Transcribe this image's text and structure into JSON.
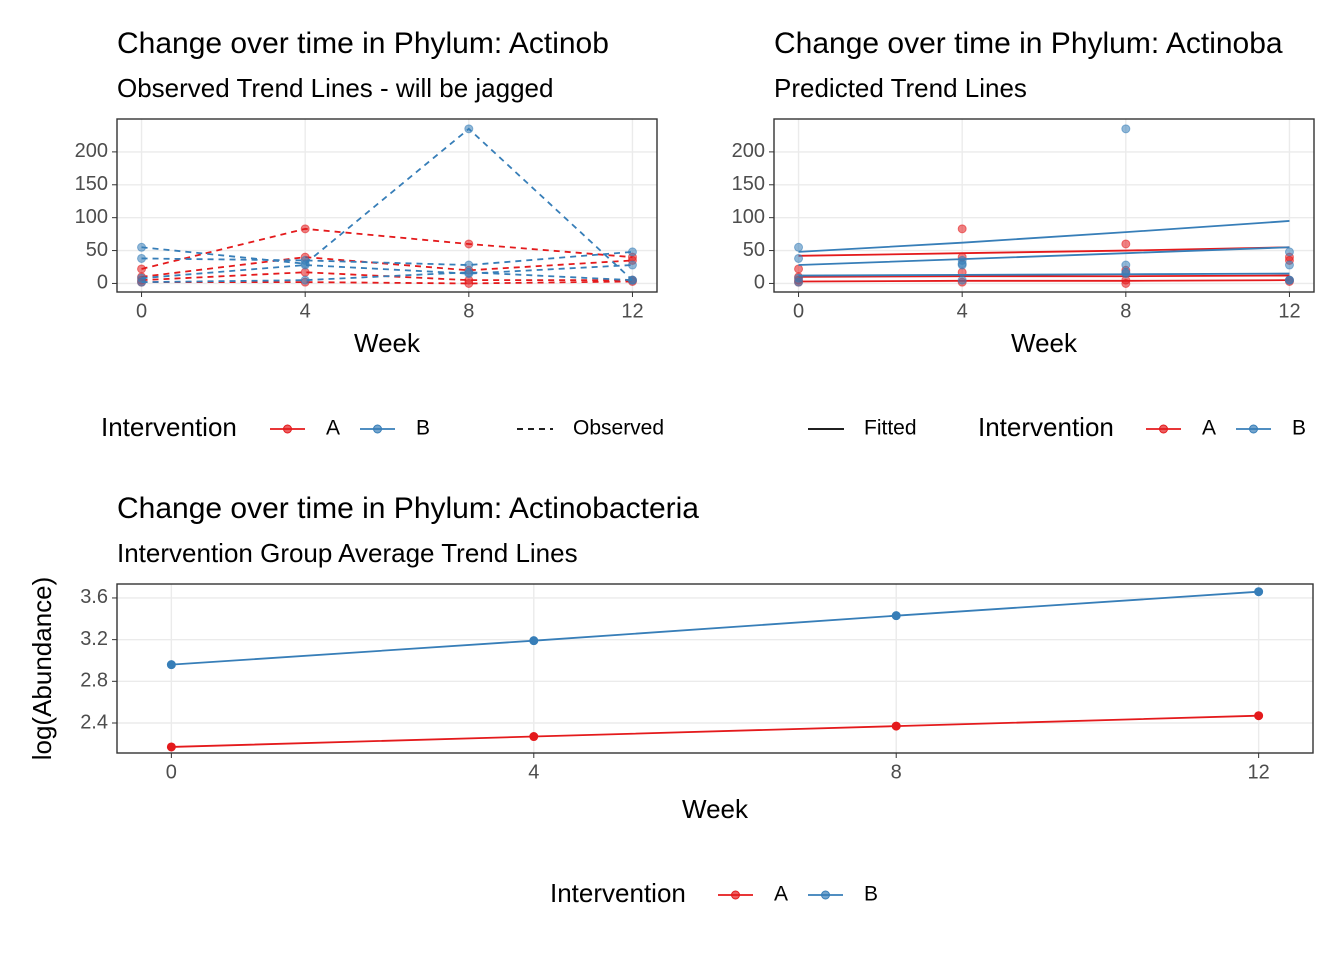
{
  "chart_data": [
    {
      "type": "line",
      "title": "Change over time in Phylum: Actinob",
      "subtitle": "Observed Trend Lines - will be jagged",
      "x_label": "Week",
      "x": [
        0,
        4,
        8,
        12
      ],
      "xlim": [
        -0.6,
        12.6
      ],
      "xticks": [
        0,
        4,
        8,
        12
      ],
      "ylim": [
        -13,
        250
      ],
      "yticks": [
        0,
        50,
        100,
        150,
        200
      ],
      "grid": true,
      "legend_title": "Intervention",
      "linetype_label": "Observed",
      "series": [
        {
          "name": "A",
          "color": "#e41a1c",
          "subjects": [
            [
              22,
              83,
              60,
              40
            ],
            [
              10,
              40,
              20,
              35
            ],
            [
              5,
              17,
              5,
              5
            ],
            [
              2,
              2,
              0,
              3
            ]
          ]
        },
        {
          "name": "B",
          "color": "#377eb8",
          "subjects": [
            [
              55,
              30,
              235,
              5
            ],
            [
              38,
              35,
              28,
              48
            ],
            [
              8,
              28,
              15,
              28
            ],
            [
              2,
              5,
              17,
              5
            ]
          ]
        }
      ]
    },
    {
      "type": "line",
      "title": "Change over time in Phylum: Actinoba",
      "subtitle": "Predicted Trend Lines",
      "x_label": "Week",
      "x": [
        0,
        4,
        8,
        12
      ],
      "xlim": [
        -0.6,
        12.6
      ],
      "xticks": [
        0,
        4,
        8,
        12
      ],
      "ylim": [
        -13,
        250
      ],
      "yticks": [
        0,
        50,
        100,
        150,
        200
      ],
      "grid": true,
      "legend_title": "Intervention",
      "linetype_label": "Fitted",
      "series": [
        {
          "name": "A",
          "color": "#e41a1c",
          "subjects": [
            [
              22,
              83,
              60,
              40
            ],
            [
              10,
              40,
              20,
              35
            ],
            [
              5,
              17,
              5,
              5
            ],
            [
              2,
              2,
              0,
              3
            ]
          ],
          "fitted": [
            [
              42,
              46,
              50,
              55
            ],
            [
              10,
              11,
              11,
              12
            ],
            [
              3,
              4,
              4,
              5
            ]
          ]
        },
        {
          "name": "B",
          "color": "#377eb8",
          "subjects": [
            [
              55,
              30,
              235,
              5
            ],
            [
              38,
              35,
              28,
              48
            ],
            [
              8,
              28,
              15,
              28
            ],
            [
              2,
              5,
              17,
              5
            ]
          ],
          "fitted": [
            [
              48,
              62,
              78,
              95
            ],
            [
              28,
              37,
              46,
              55
            ],
            [
              12,
              13,
              14,
              15
            ]
          ]
        }
      ]
    },
    {
      "type": "line",
      "title": "Change over time in Phylum: Actinobacteria",
      "subtitle": "Intervention Group Average Trend Lines",
      "x_label": "Week",
      "y_label": "log(Abundance)",
      "x": [
        0,
        4,
        8,
        12
      ],
      "xlim": [
        -0.6,
        12.6
      ],
      "xticks": [
        0,
        4,
        8,
        12
      ],
      "ylim": [
        2.112,
        3.734
      ],
      "yticks": [
        2.4,
        2.8,
        3.2,
        3.6
      ],
      "grid": true,
      "legend_title": "Intervention",
      "series": [
        {
          "name": "A",
          "color": "#e41a1c",
          "values": [
            2.17,
            2.27,
            2.37,
            2.47
          ]
        },
        {
          "name": "B",
          "color": "#377eb8",
          "values": [
            2.96,
            3.19,
            3.43,
            3.66
          ]
        }
      ]
    }
  ]
}
